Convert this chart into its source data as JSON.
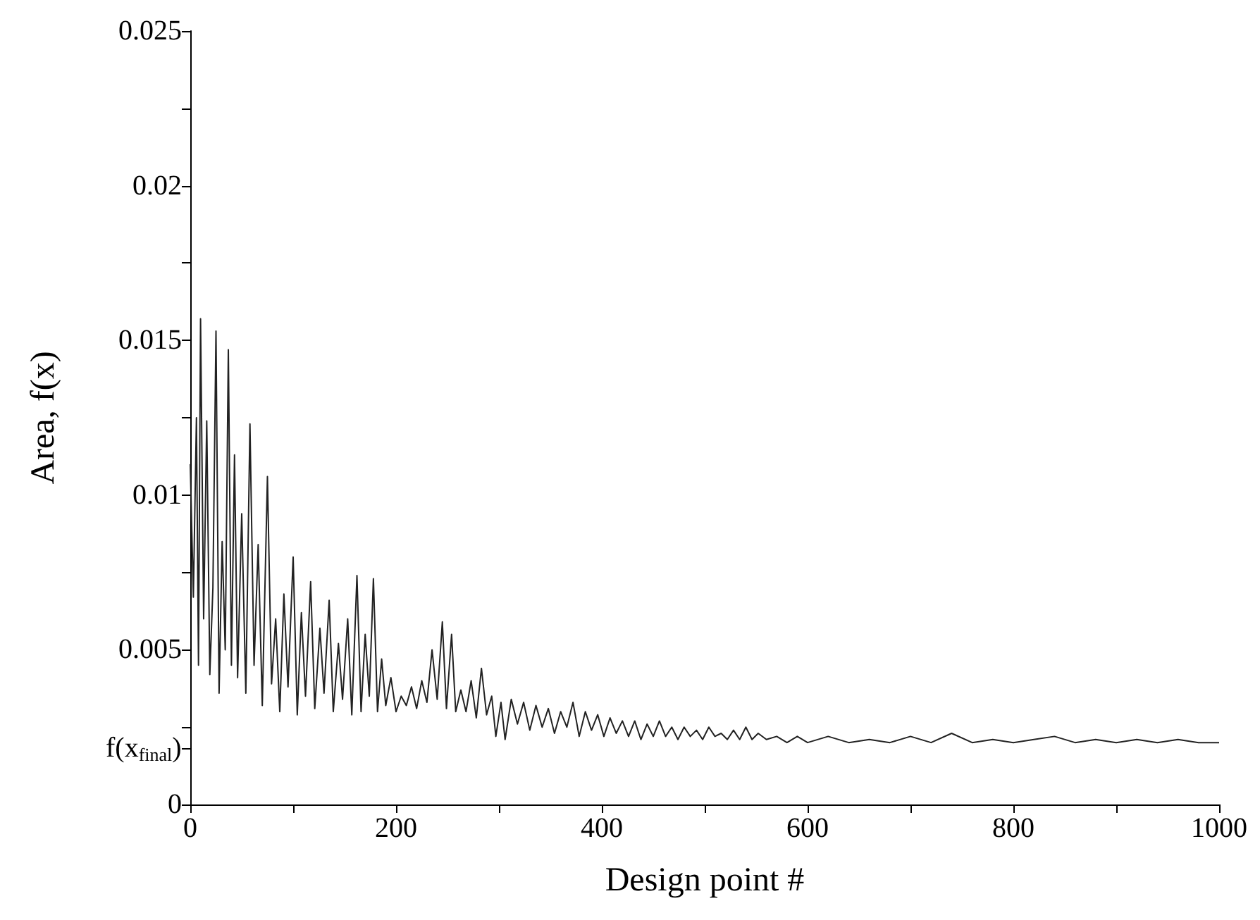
{
  "chart_data": {
    "type": "line",
    "xlabel": "Design point #",
    "ylabel": "Area, f(x)",
    "xlim": [
      0,
      1000
    ],
    "ylim": [
      0,
      0.025
    ],
    "xticks": [
      0,
      {
        "value": 100,
        "label": null
      },
      200,
      {
        "value": 300,
        "label": null
      },
      400,
      {
        "value": 500,
        "label": null
      },
      600,
      {
        "value": 700,
        "label": null
      },
      800,
      {
        "value": 900,
        "label": null
      },
      1000
    ],
    "yticks": [
      0,
      {
        "value": 0.0018,
        "label": "f(x$_{final}$)"
      },
      {
        "value": 0.0025,
        "label": null
      },
      0.005,
      {
        "value": 0.0075,
        "label": null
      },
      0.01,
      {
        "value": 0.0125,
        "label": null
      },
      0.015,
      {
        "value": 0.0175,
        "label": null
      },
      0.02,
      {
        "value": 0.0225,
        "label": null
      },
      0.025
    ],
    "grid": false,
    "series": [
      {
        "color": "#222222",
        "x": [
          0,
          3,
          6,
          8,
          10,
          13,
          16,
          19,
          22,
          25,
          28,
          31,
          34,
          37,
          40,
          43,
          46,
          50,
          54,
          58,
          62,
          66,
          70,
          75,
          79,
          83,
          87,
          91,
          95,
          100,
          104,
          108,
          112,
          117,
          121,
          126,
          130,
          135,
          139,
          144,
          148,
          153,
          157,
          162,
          166,
          170,
          174,
          178,
          182,
          186,
          190,
          195,
          200,
          205,
          210,
          215,
          220,
          225,
          230,
          235,
          240,
          245,
          249,
          254,
          258,
          263,
          268,
          273,
          278,
          283,
          288,
          293,
          297,
          302,
          306,
          312,
          318,
          324,
          330,
          336,
          342,
          348,
          354,
          360,
          366,
          372,
          378,
          384,
          390,
          396,
          402,
          408,
          414,
          420,
          426,
          432,
          438,
          444,
          450,
          456,
          462,
          468,
          474,
          480,
          486,
          492,
          498,
          504,
          510,
          516,
          522,
          528,
          534,
          540,
          546,
          552,
          560,
          570,
          580,
          590,
          600,
          620,
          640,
          660,
          680,
          700,
          720,
          740,
          760,
          780,
          800,
          820,
          840,
          860,
          880,
          900,
          920,
          940,
          960,
          980,
          1000
        ],
        "values": [
          0.011,
          0.0067,
          0.0125,
          0.0045,
          0.0157,
          0.006,
          0.0124,
          0.0042,
          0.007,
          0.0153,
          0.0036,
          0.0085,
          0.005,
          0.0147,
          0.0045,
          0.0113,
          0.0041,
          0.0094,
          0.0036,
          0.0123,
          0.0045,
          0.0084,
          0.0032,
          0.0106,
          0.0039,
          0.006,
          0.003,
          0.0068,
          0.0038,
          0.008,
          0.0029,
          0.0062,
          0.0035,
          0.0072,
          0.0031,
          0.0057,
          0.0036,
          0.0066,
          0.003,
          0.0052,
          0.0034,
          0.006,
          0.0029,
          0.0074,
          0.003,
          0.0055,
          0.0035,
          0.0073,
          0.003,
          0.0047,
          0.0032,
          0.0041,
          0.003,
          0.0035,
          0.0032,
          0.0038,
          0.0031,
          0.004,
          0.0033,
          0.005,
          0.0034,
          0.0059,
          0.0031,
          0.0055,
          0.003,
          0.0037,
          0.003,
          0.004,
          0.0028,
          0.0044,
          0.0029,
          0.0035,
          0.0022,
          0.0033,
          0.0021,
          0.0034,
          0.0026,
          0.0033,
          0.0024,
          0.0032,
          0.0025,
          0.0031,
          0.0023,
          0.003,
          0.0025,
          0.0033,
          0.0022,
          0.003,
          0.0024,
          0.0029,
          0.0022,
          0.0028,
          0.0023,
          0.0027,
          0.0022,
          0.0027,
          0.0021,
          0.0026,
          0.0022,
          0.0027,
          0.0022,
          0.0025,
          0.0021,
          0.0025,
          0.0022,
          0.0024,
          0.0021,
          0.0025,
          0.0022,
          0.0023,
          0.0021,
          0.0024,
          0.0021,
          0.0025,
          0.0021,
          0.0023,
          0.0021,
          0.0022,
          0.002,
          0.0022,
          0.002,
          0.0022,
          0.002,
          0.0021,
          0.002,
          0.0022,
          0.002,
          0.0023,
          0.002,
          0.0021,
          0.002,
          0.0021,
          0.0022,
          0.002,
          0.0021,
          0.002,
          0.0021,
          0.002,
          0.0021,
          0.002,
          0.002
        ]
      }
    ]
  }
}
